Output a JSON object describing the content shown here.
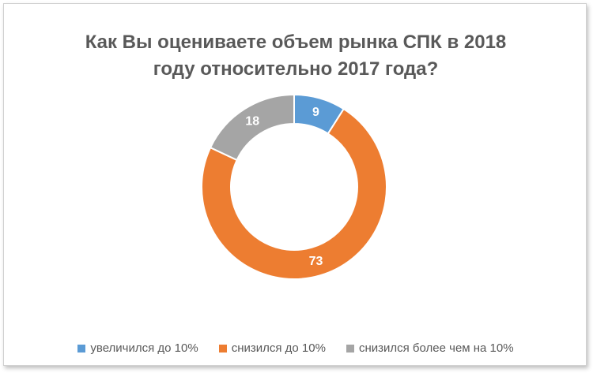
{
  "chart_data": {
    "type": "pie",
    "title": "Как Вы оцениваете объем рынка СПК в 2018 году относительно 2017 года?",
    "title_lines": [
      "Как Вы оцениваете объем рынка СПК в 2018",
      "году относительно 2017 года?"
    ],
    "donut": true,
    "categories": [
      "увеличился до 10%",
      "снизился до 10%",
      "снизился более чем на 10%"
    ],
    "values": [
      9,
      73,
      18
    ],
    "data_labels": [
      "9",
      "73",
      "18"
    ],
    "colors": [
      "#5b9bd5",
      "#ed7d31",
      "#a5a5a5"
    ],
    "legend_position": "bottom"
  }
}
